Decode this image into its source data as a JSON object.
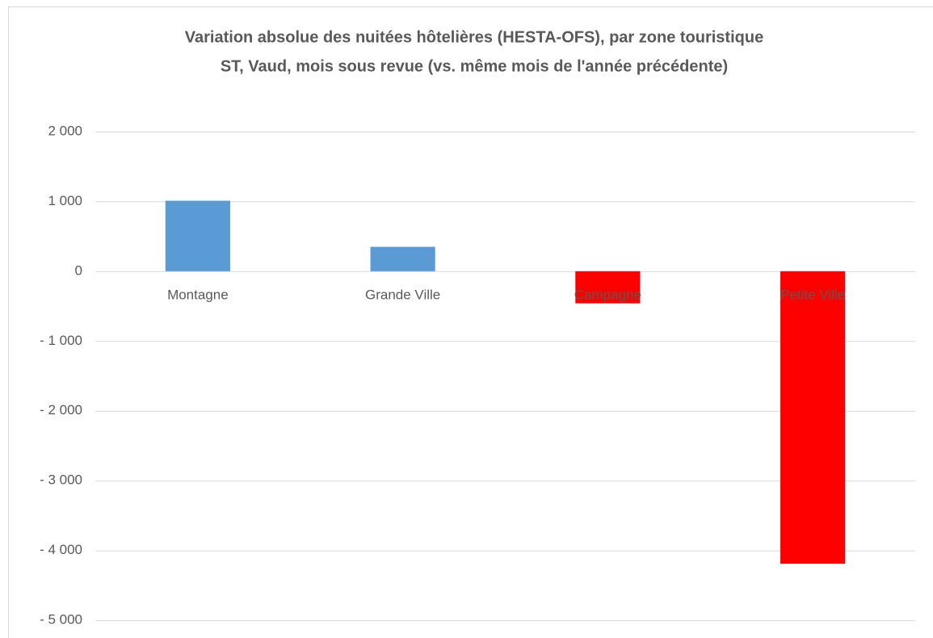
{
  "chart_data": {
    "type": "bar",
    "title": "Variation absolue des nuitées hôtelières (HESTA-OFS), par zone touristique",
    "subtitle": "ST, Vaud, mois sous revue (vs. même mois de l'année précédente)",
    "categories": [
      "Montagne",
      "Grande Ville",
      "Campagne",
      "Petite Ville"
    ],
    "values": [
      1010,
      350,
      -460,
      -4190
    ],
    "colors": [
      "#5b9bd5",
      "#5b9bd5",
      "#ff0000",
      "#ff0000"
    ],
    "ylim": [
      -5000,
      2000
    ],
    "yticks": [
      {
        "value": -5000,
        "label": "- 5 000"
      },
      {
        "value": -4000,
        "label": "- 4 000"
      },
      {
        "value": -3000,
        "label": "- 3 000"
      },
      {
        "value": -2000,
        "label": "- 2 000"
      },
      {
        "value": -1000,
        "label": "- 1 000"
      },
      0,
      {
        "value": 1000,
        "label": "1 000"
      },
      {
        "value": 2000,
        "label": "2 000"
      }
    ],
    "grid": true
  }
}
